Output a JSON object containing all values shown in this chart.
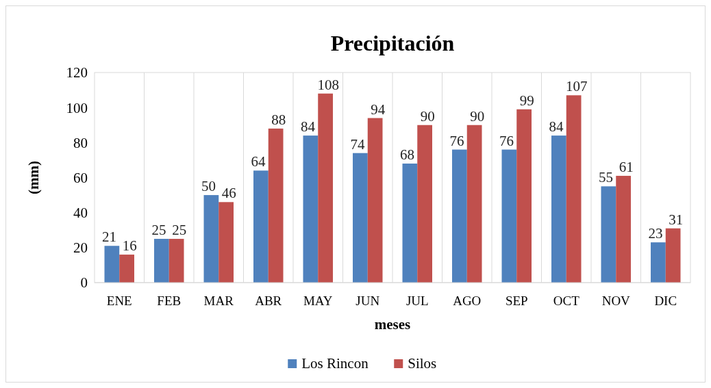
{
  "chart_data": {
    "type": "bar",
    "title": "Precipitación",
    "xlabel": "meses",
    "ylabel": "(mm)",
    "categories": [
      "ENE",
      "FEB",
      "MAR",
      "ABR",
      "MAY",
      "JUN",
      "JUL",
      "AGO",
      "SEP",
      "OCT",
      "NOV",
      "DIC"
    ],
    "series": [
      {
        "name": "Los Rincon",
        "color": "#4f81bd",
        "values": [
          21,
          25,
          50,
          64,
          84,
          74,
          68,
          76,
          76,
          84,
          55,
          23
        ]
      },
      {
        "name": "Silos",
        "color": "#c0504d",
        "values": [
          16,
          25,
          46,
          88,
          108,
          94,
          90,
          90,
          99,
          107,
          61,
          31
        ]
      }
    ],
    "ylim": [
      0,
      120
    ],
    "yticks": [
      0,
      20,
      40,
      60,
      80,
      100,
      120
    ],
    "grid": "x",
    "legend": "bottom",
    "data_labels": true
  }
}
